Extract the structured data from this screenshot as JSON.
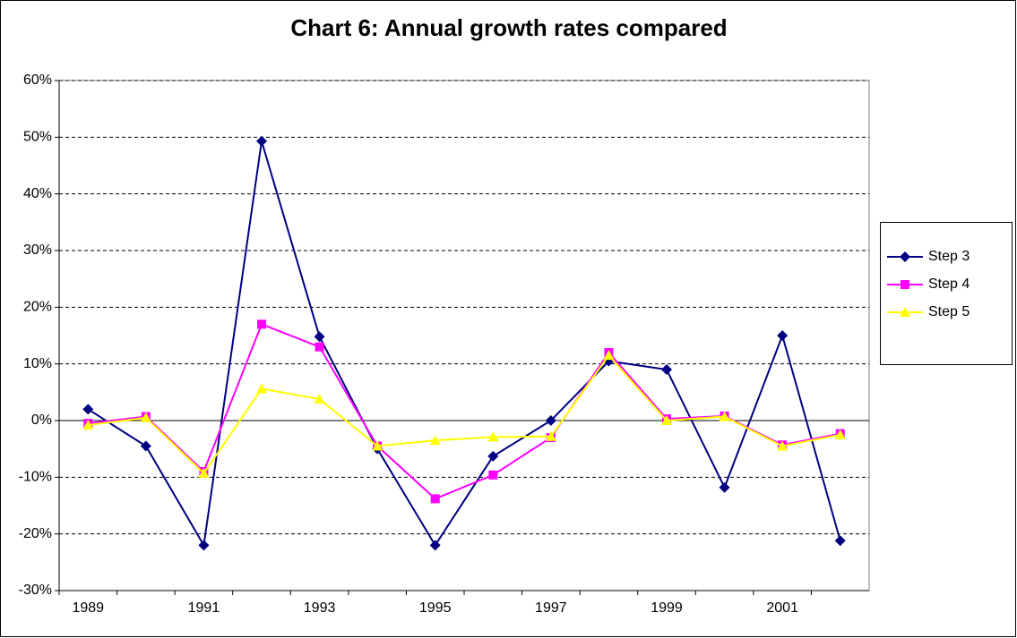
{
  "chart_data": {
    "type": "line",
    "title": "Chart 6: Annual growth rates compared",
    "categories": [
      "1989",
      null,
      "1991",
      null,
      "1993",
      null,
      "1995",
      null,
      "1997",
      null,
      "1999",
      null,
      "2001",
      null
    ],
    "series": [
      {
        "name": "Step 3",
        "color": "#000080",
        "marker": "diamond",
        "values": [
          2,
          -4.5,
          -22,
          49.3,
          14.8,
          -5,
          -22,
          -6.3,
          0,
          10.5,
          9,
          -11.8,
          15,
          -21.2
        ]
      },
      {
        "name": "Step 4",
        "color": "#ff00ff",
        "marker": "square",
        "values": [
          -0.5,
          0.7,
          -9,
          17,
          13,
          -4.5,
          -13.8,
          -9.6,
          -3,
          12,
          0.3,
          0.8,
          -4.3,
          -2.3
        ]
      },
      {
        "name": "Step 5",
        "color": "#ffff00",
        "marker": "triangle",
        "values": [
          -0.8,
          0.5,
          -9.3,
          5.6,
          3.8,
          -4.5,
          -3.5,
          -2.9,
          -2.8,
          11.5,
          0,
          0.7,
          -4.5,
          -2.5
        ]
      }
    ],
    "ylim": [
      -30,
      60
    ],
    "yticks": [
      {
        "value": -30,
        "label": "-30%"
      },
      {
        "value": -20,
        "label": "-20%"
      },
      {
        "value": -10,
        "label": "-10%"
      },
      {
        "value": 0,
        "label": "0%"
      },
      {
        "value": 10,
        "label": "10%"
      },
      {
        "value": 20,
        "label": "20%"
      },
      {
        "value": 30,
        "label": "30%"
      },
      {
        "value": 40,
        "label": "40%"
      },
      {
        "value": 50,
        "label": "50%"
      },
      {
        "value": 60,
        "label": "60%"
      }
    ],
    "grid": true,
    "legend": "right"
  }
}
